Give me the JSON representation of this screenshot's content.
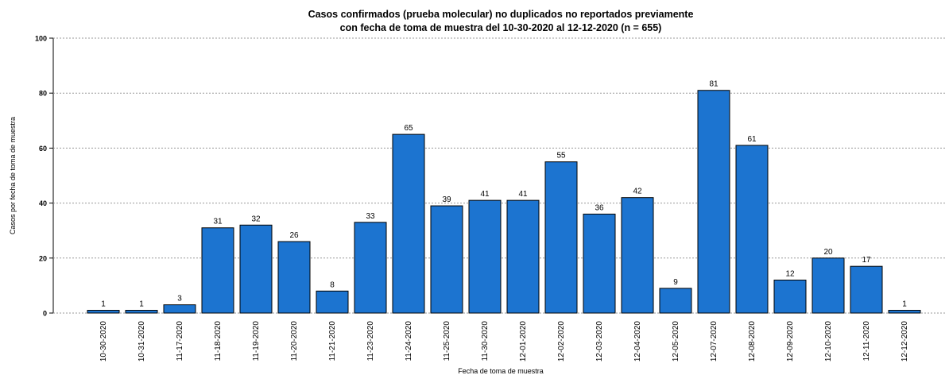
{
  "chart_data": {
    "type": "bar",
    "title": [
      "Casos confirmados (prueba molecular) no duplicados no reportados previamente",
      "con fecha de toma de muestra del 10-30-2020 al 12-12-2020 (n = 655)"
    ],
    "xlabel": "Fecha de toma de muestra",
    "ylabel": "Casos por fecha de toma de muestra",
    "categories": [
      "10-30-2020",
      "10-31-2020",
      "11-17-2020",
      "11-18-2020",
      "11-19-2020",
      "11-20-2020",
      "11-21-2020",
      "11-23-2020",
      "11-24-2020",
      "11-25-2020",
      "11-30-2020",
      "12-01-2020",
      "12-02-2020",
      "12-03-2020",
      "12-04-2020",
      "12-05-2020",
      "12-07-2020",
      "12-08-2020",
      "12-09-2020",
      "12-10-2020",
      "12-11-2020",
      "12-12-2020"
    ],
    "values": [
      1,
      1,
      3,
      31,
      32,
      26,
      8,
      33,
      65,
      39,
      41,
      41,
      55,
      36,
      42,
      9,
      81,
      61,
      12,
      20,
      17,
      1
    ],
    "color": "#1c74d0",
    "ylim": [
      0,
      100
    ],
    "yticks": [
      0,
      20,
      40,
      60,
      80,
      100
    ],
    "grid": true
  }
}
